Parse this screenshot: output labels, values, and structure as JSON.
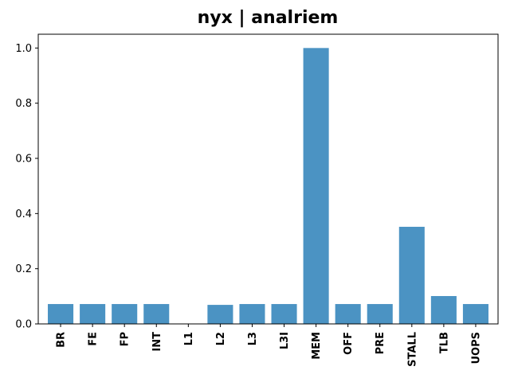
{
  "chart_data": {
    "type": "bar",
    "title": "nyx | analriem",
    "xlabel": "",
    "ylabel": "",
    "categories": [
      "BR",
      "FE",
      "FP",
      "INT",
      "L1",
      "L2",
      "L3",
      "L3I",
      "MEM",
      "OFF",
      "PRE",
      "STALL",
      "TLB",
      "UOPS"
    ],
    "values": [
      0.072,
      0.072,
      0.072,
      0.072,
      0.0,
      0.069,
      0.072,
      0.072,
      1.0,
      0.072,
      0.072,
      0.352,
      0.101,
      0.072
    ],
    "ylim": [
      0,
      1.05
    ],
    "yticks": [
      "0.0",
      "0.2",
      "0.4",
      "0.6",
      "0.8",
      "1.0"
    ],
    "bar_color": "#4b93c3",
    "grid": false,
    "legend": "none"
  }
}
